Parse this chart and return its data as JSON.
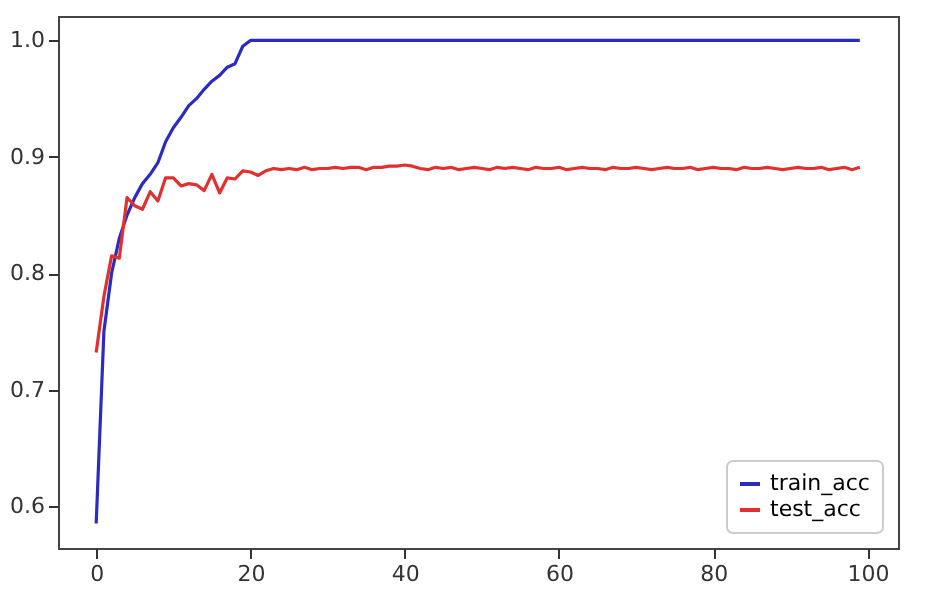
{
  "chart_data": {
    "type": "line",
    "x": [
      0,
      1,
      2,
      3,
      4,
      5,
      6,
      7,
      8,
      9,
      10,
      11,
      12,
      13,
      14,
      15,
      16,
      17,
      18,
      19,
      20,
      21,
      22,
      23,
      24,
      25,
      26,
      27,
      28,
      29,
      30,
      31,
      32,
      33,
      34,
      35,
      36,
      37,
      38,
      39,
      40,
      41,
      42,
      43,
      44,
      45,
      46,
      47,
      48,
      49,
      50,
      51,
      52,
      53,
      54,
      55,
      56,
      57,
      58,
      59,
      60,
      61,
      62,
      63,
      64,
      65,
      66,
      67,
      68,
      69,
      70,
      71,
      72,
      73,
      74,
      75,
      76,
      77,
      78,
      79,
      80,
      81,
      82,
      83,
      84,
      85,
      86,
      87,
      88,
      89,
      90,
      91,
      92,
      93,
      94,
      95,
      96,
      97,
      98,
      99
    ],
    "series": [
      {
        "name": "train_acc",
        "color": "#2b2bbf",
        "values": [
          0.585,
          0.75,
          0.8,
          0.83,
          0.85,
          0.865,
          0.877,
          0.885,
          0.895,
          0.913,
          0.925,
          0.934,
          0.944,
          0.95,
          0.958,
          0.965,
          0.97,
          0.977,
          0.98,
          0.995,
          1.0,
          1.0,
          1.0,
          1.0,
          1.0,
          1.0,
          1.0,
          1.0,
          1.0,
          1.0,
          1.0,
          1.0,
          1.0,
          1.0,
          1.0,
          1.0,
          1.0,
          1.0,
          1.0,
          1.0,
          1.0,
          1.0,
          1.0,
          1.0,
          1.0,
          1.0,
          1.0,
          1.0,
          1.0,
          1.0,
          1.0,
          1.0,
          1.0,
          1.0,
          1.0,
          1.0,
          1.0,
          1.0,
          1.0,
          1.0,
          1.0,
          1.0,
          1.0,
          1.0,
          1.0,
          1.0,
          1.0,
          1.0,
          1.0,
          1.0,
          1.0,
          1.0,
          1.0,
          1.0,
          1.0,
          1.0,
          1.0,
          1.0,
          1.0,
          1.0,
          1.0,
          1.0,
          1.0,
          1.0,
          1.0,
          1.0,
          1.0,
          1.0,
          1.0,
          1.0,
          1.0,
          1.0,
          1.0,
          1.0,
          1.0,
          1.0,
          1.0,
          1.0,
          1.0,
          1.0
        ]
      },
      {
        "name": "test_acc",
        "color": "#e03030",
        "values": [
          0.732,
          0.78,
          0.815,
          0.813,
          0.865,
          0.858,
          0.855,
          0.87,
          0.862,
          0.882,
          0.882,
          0.875,
          0.877,
          0.876,
          0.871,
          0.885,
          0.869,
          0.882,
          0.881,
          0.888,
          0.887,
          0.884,
          0.888,
          0.89,
          0.889,
          0.89,
          0.889,
          0.891,
          0.889,
          0.89,
          0.89,
          0.891,
          0.89,
          0.891,
          0.891,
          0.889,
          0.891,
          0.891,
          0.892,
          0.892,
          0.893,
          0.892,
          0.89,
          0.889,
          0.891,
          0.89,
          0.891,
          0.889,
          0.89,
          0.891,
          0.89,
          0.889,
          0.891,
          0.89,
          0.891,
          0.89,
          0.889,
          0.891,
          0.89,
          0.89,
          0.891,
          0.889,
          0.89,
          0.891,
          0.89,
          0.89,
          0.889,
          0.891,
          0.89,
          0.89,
          0.891,
          0.89,
          0.889,
          0.89,
          0.891,
          0.89,
          0.89,
          0.891,
          0.889,
          0.89,
          0.891,
          0.89,
          0.89,
          0.889,
          0.891,
          0.89,
          0.89,
          0.891,
          0.89,
          0.889,
          0.89,
          0.891,
          0.89,
          0.89,
          0.891,
          0.889,
          0.89,
          0.891,
          0.889,
          0.891
        ]
      }
    ],
    "xlim": [
      -4.95,
      103.95
    ],
    "xticks": [
      0,
      20,
      40,
      60,
      80,
      100
    ],
    "ylim": [
      0.564,
      1.021
    ],
    "yticks": [
      0.6,
      0.7,
      0.8,
      0.9,
      {
        "value": 1,
        "label": "1.0"
      }
    ],
    "legend": "bottom right"
  }
}
